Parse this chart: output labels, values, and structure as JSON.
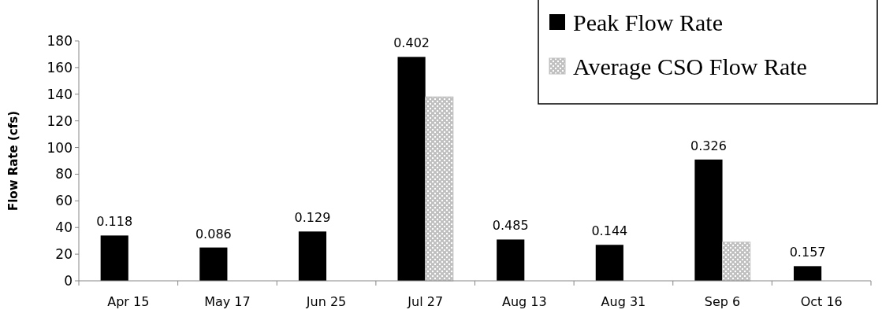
{
  "chart_data": {
    "type": "bar",
    "ylabel": "Flow Rate (cfs)",
    "categories": [
      "Apr 15",
      "May 17",
      "Jun 25",
      "Jul 27",
      "Aug 13",
      "Aug 31",
      "Sep 6",
      "Oct 16"
    ],
    "series": [
      {
        "name": "Peak Flow Rate",
        "color": "#000000",
        "values": [
          34,
          25,
          37,
          168,
          31,
          27,
          91,
          11
        ]
      },
      {
        "name": "Average CSO Flow Rate",
        "color": "#bfbfbf",
        "values": [
          0,
          0,
          0,
          138,
          0,
          0,
          29,
          0
        ]
      }
    ],
    "ylim": [
      0,
      180
    ],
    "yticks": [
      0,
      20,
      40,
      60,
      80,
      100,
      120,
      140,
      160,
      180
    ],
    "grid": false,
    "legend": "top right",
    "annotations": [
      {
        "text": "0.118",
        "x": "Apr 15",
        "y": 34
      },
      {
        "text": "0.086",
        "x": "May 17",
        "y": 25
      },
      {
        "text": "0.129",
        "x": "Jun 25",
        "y": 37
      },
      {
        "text": "0.402",
        "x": "Jul 27",
        "y": 168
      },
      {
        "text": "0.485",
        "x": "Aug 13",
        "y": 31
      },
      {
        "text": "0.144",
        "x": "Aug 31",
        "y": 27
      },
      {
        "text": "0.326",
        "x": "Sep 6",
        "y": 91
      },
      {
        "text": "0.157",
        "x": "Oct 16",
        "y": 11
      }
    ]
  }
}
